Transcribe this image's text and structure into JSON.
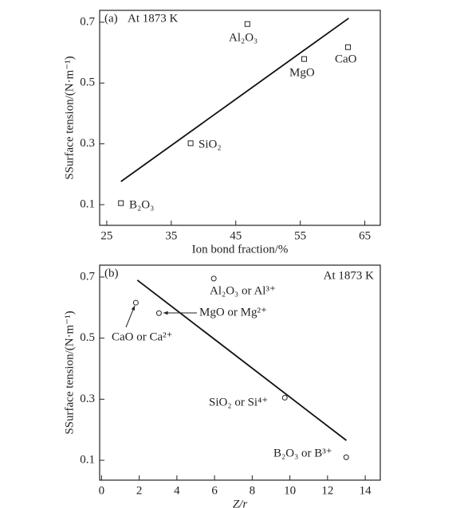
{
  "chart_data": [
    {
      "type": "scatter",
      "panel": "(a)",
      "title": "At 1873 K",
      "x_label": "Ion bond fraction/%",
      "y_label": "SSurface tension/(N·m⁻¹)",
      "xlim": [
        23.9,
        67.4
      ],
      "ylim": [
        0.032,
        0.739
      ],
      "xticks": [
        25,
        35,
        45,
        55,
        65
      ],
      "yticks": [
        0.1,
        0.3,
        0.5,
        0.7
      ],
      "points": {
        "labels": [
          "B₂O₃",
          "SiO₂",
          "Al₂O₃",
          "MgO",
          "CaO"
        ],
        "x": [
          27.2,
          38.0,
          46.8,
          55.6,
          62.4
        ],
        "y": [
          0.105,
          0.302,
          0.694,
          0.579,
          0.618
        ]
      },
      "fit_line": {
        "x": [
          27.2,
          62.5
        ],
        "y": [
          0.176,
          0.713
        ]
      }
    },
    {
      "type": "scatter",
      "panel": "(b)",
      "title": "At 1873 K",
      "x_label": "Z/r",
      "y_label": "SSurface tension/(N·m⁻¹)",
      "xlim": [
        -0.1,
        14.8
      ],
      "ylim": [
        0.035,
        0.739
      ],
      "xticks": [
        0,
        2,
        4,
        6,
        8,
        10,
        12,
        14
      ],
      "yticks": [
        0.1,
        0.3,
        0.5,
        0.7
      ],
      "points": {
        "labels": [
          "CaO or Ca²⁺",
          "MgO or Mg²⁺",
          "Al₂O₃ or Al³⁺",
          "SiO₂ or Si⁴⁺",
          "B₂O₃ or B³⁺"
        ],
        "x": [
          1.82,
          3.05,
          5.96,
          9.73,
          12.99
        ],
        "y": [
          0.616,
          0.582,
          0.695,
          0.305,
          0.11
        ]
      },
      "fit_line": {
        "x": [
          1.9,
          13.0
        ],
        "y": [
          0.69,
          0.165
        ]
      }
    }
  ]
}
